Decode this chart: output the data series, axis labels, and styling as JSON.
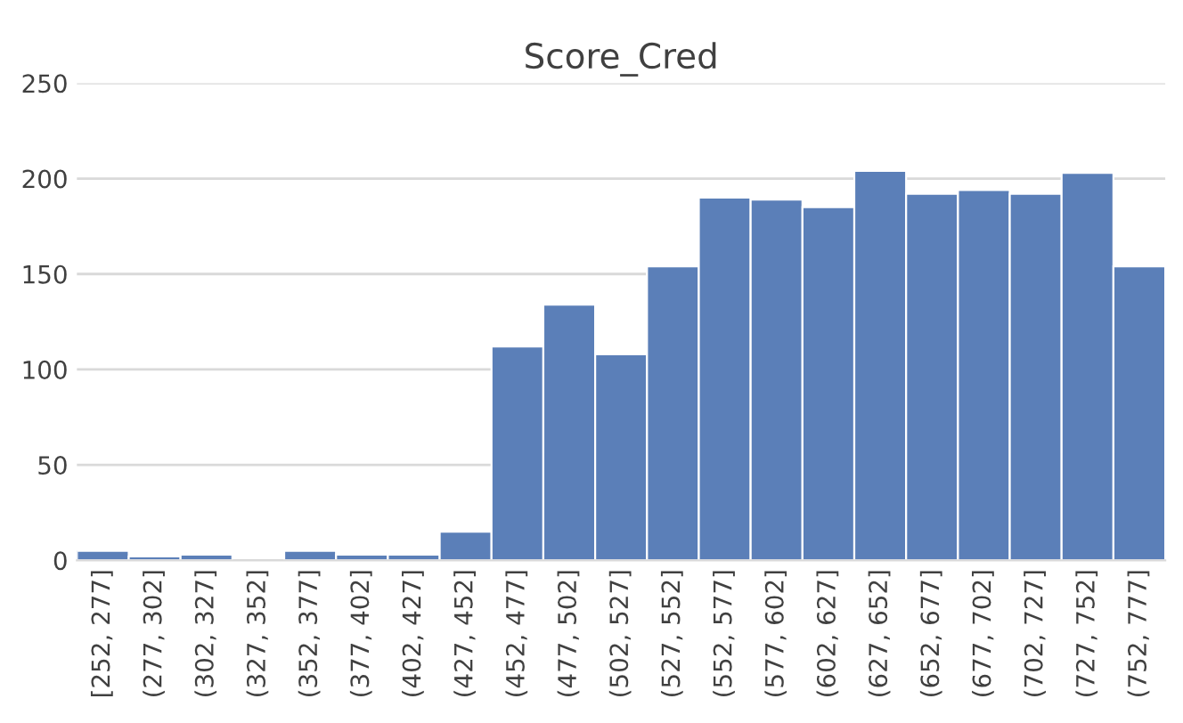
{
  "chart_data": {
    "type": "bar",
    "title": "Score_Cred",
    "categories": [
      "[252, 277]",
      "(277, 302]",
      "(302, 327]",
      "(327, 352]",
      "(352, 377]",
      "(377, 402]",
      "(402, 427]",
      "(427, 452]",
      "(452, 477]",
      "(477, 502]",
      "(502, 527]",
      "(527, 552]",
      "(552, 577]",
      "(577, 602]",
      "(602, 627]",
      "(627, 652]",
      "(652, 677]",
      "(677, 702]",
      "(702, 727]",
      "(727, 752]",
      "(752, 777]"
    ],
    "values": [
      5,
      2,
      3,
      0,
      5,
      3,
      3,
      15,
      112,
      134,
      108,
      154,
      190,
      189,
      185,
      204,
      192,
      194,
      192,
      203,
      154
    ],
    "color": "#5b7fb8",
    "ylim": [
      0,
      250
    ],
    "yticks": [
      0,
      50,
      100,
      150,
      200,
      250
    ],
    "grid": "y",
    "legend": false
  }
}
